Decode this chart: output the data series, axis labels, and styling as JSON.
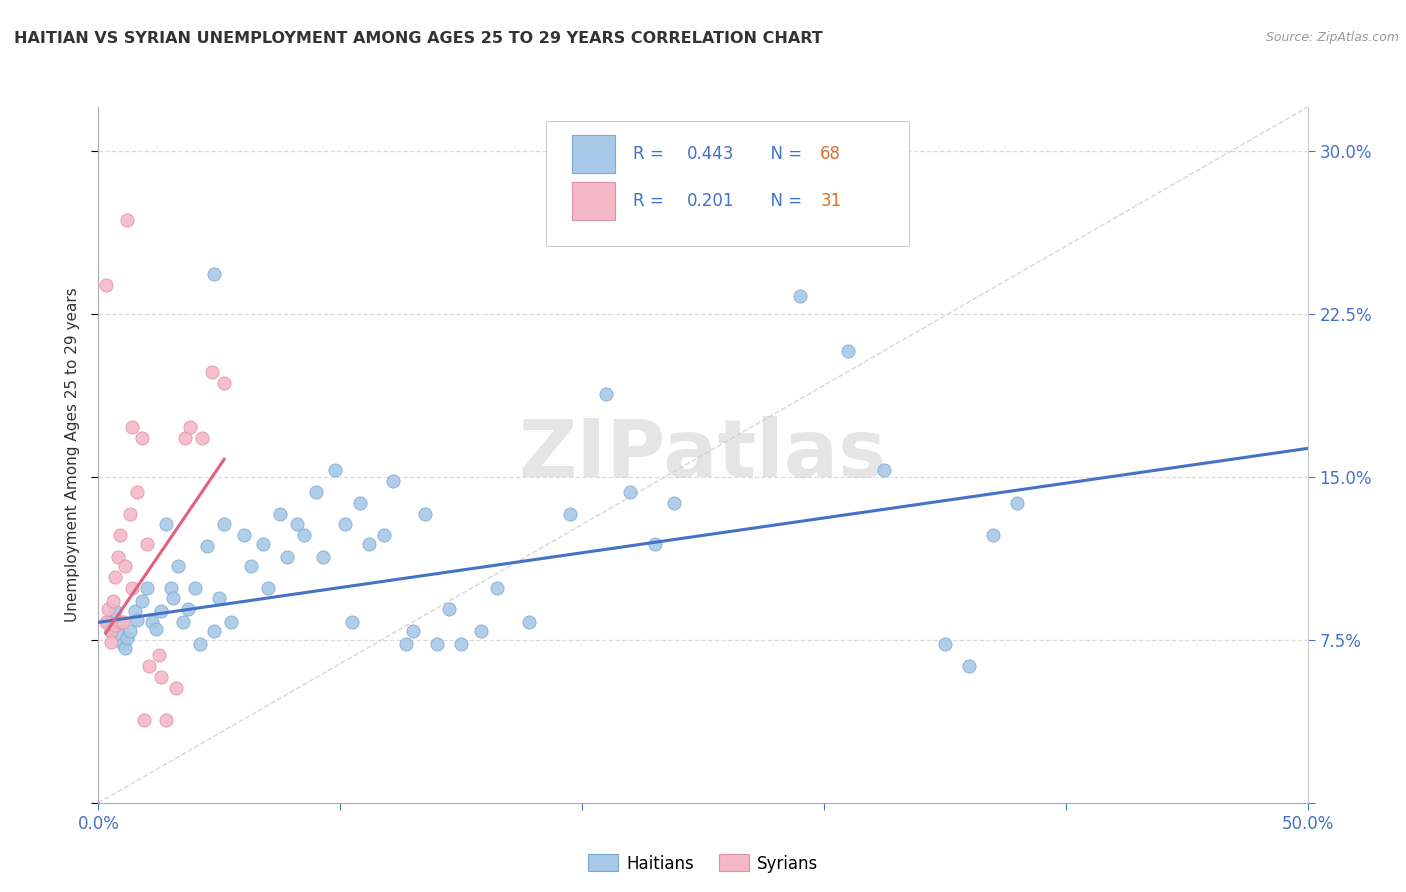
{
  "title": "HAITIAN VS SYRIAN UNEMPLOYMENT AMONG AGES 25 TO 29 YEARS CORRELATION CHART",
  "source": "Source: ZipAtlas.com",
  "ylabel": "Unemployment Among Ages 25 to 29 years",
  "xlim": [
    0.0,
    0.5
  ],
  "ylim": [
    0.0,
    0.32
  ],
  "yticks": [
    0.0,
    0.075,
    0.15,
    0.225,
    0.3
  ],
  "ytick_labels": [
    "",
    "7.5%",
    "15.0%",
    "22.5%",
    "30.0%"
  ],
  "xticks": [
    0.0,
    0.1,
    0.2,
    0.3,
    0.4,
    0.5
  ],
  "legend_haitian_R": "0.443",
  "legend_haitian_N": "68",
  "legend_syrian_R": "0.201",
  "legend_syrian_N": "31",
  "watermark": "ZIPatlas",
  "haitian_color": "#a8c8e8",
  "haitian_edge_color": "#7aaad0",
  "haitian_line_color": "#4472c4",
  "syrian_color": "#f4b8c8",
  "syrian_edge_color": "#e090a8",
  "syrian_line_color": "#e06080",
  "haitian_scatter": [
    [
      0.004,
      0.083
    ],
    [
      0.005,
      0.079
    ],
    [
      0.006,
      0.082
    ],
    [
      0.007,
      0.088
    ],
    [
      0.009,
      0.077
    ],
    [
      0.01,
      0.073
    ],
    [
      0.011,
      0.071
    ],
    [
      0.012,
      0.076
    ],
    [
      0.013,
      0.079
    ],
    [
      0.015,
      0.088
    ],
    [
      0.016,
      0.084
    ],
    [
      0.018,
      0.093
    ],
    [
      0.02,
      0.099
    ],
    [
      0.022,
      0.083
    ],
    [
      0.024,
      0.08
    ],
    [
      0.026,
      0.088
    ],
    [
      0.028,
      0.128
    ],
    [
      0.03,
      0.099
    ],
    [
      0.031,
      0.094
    ],
    [
      0.033,
      0.109
    ],
    [
      0.035,
      0.083
    ],
    [
      0.037,
      0.089
    ],
    [
      0.04,
      0.099
    ],
    [
      0.042,
      0.073
    ],
    [
      0.045,
      0.118
    ],
    [
      0.048,
      0.079
    ],
    [
      0.05,
      0.094
    ],
    [
      0.052,
      0.128
    ],
    [
      0.055,
      0.083
    ],
    [
      0.06,
      0.123
    ],
    [
      0.063,
      0.109
    ],
    [
      0.068,
      0.119
    ],
    [
      0.07,
      0.099
    ],
    [
      0.075,
      0.133
    ],
    [
      0.078,
      0.113
    ],
    [
      0.082,
      0.128
    ],
    [
      0.085,
      0.123
    ],
    [
      0.09,
      0.143
    ],
    [
      0.093,
      0.113
    ],
    [
      0.098,
      0.153
    ],
    [
      0.102,
      0.128
    ],
    [
      0.105,
      0.083
    ],
    [
      0.108,
      0.138
    ],
    [
      0.112,
      0.119
    ],
    [
      0.118,
      0.123
    ],
    [
      0.122,
      0.148
    ],
    [
      0.127,
      0.073
    ],
    [
      0.13,
      0.079
    ],
    [
      0.135,
      0.133
    ],
    [
      0.14,
      0.073
    ],
    [
      0.145,
      0.089
    ],
    [
      0.15,
      0.073
    ],
    [
      0.158,
      0.079
    ],
    [
      0.165,
      0.099
    ],
    [
      0.178,
      0.083
    ],
    [
      0.195,
      0.133
    ],
    [
      0.21,
      0.188
    ],
    [
      0.048,
      0.243
    ],
    [
      0.22,
      0.143
    ],
    [
      0.23,
      0.119
    ],
    [
      0.238,
      0.138
    ],
    [
      0.29,
      0.233
    ],
    [
      0.31,
      0.208
    ],
    [
      0.325,
      0.153
    ],
    [
      0.35,
      0.073
    ],
    [
      0.36,
      0.063
    ],
    [
      0.37,
      0.123
    ],
    [
      0.38,
      0.138
    ]
  ],
  "syrian_scatter": [
    [
      0.003,
      0.083
    ],
    [
      0.004,
      0.089
    ],
    [
      0.005,
      0.079
    ],
    [
      0.005,
      0.074
    ],
    [
      0.006,
      0.093
    ],
    [
      0.007,
      0.082
    ],
    [
      0.007,
      0.104
    ],
    [
      0.008,
      0.113
    ],
    [
      0.009,
      0.083
    ],
    [
      0.009,
      0.123
    ],
    [
      0.01,
      0.083
    ],
    [
      0.011,
      0.109
    ],
    [
      0.013,
      0.133
    ],
    [
      0.014,
      0.099
    ],
    [
      0.016,
      0.143
    ],
    [
      0.018,
      0.168
    ],
    [
      0.02,
      0.119
    ],
    [
      0.021,
      0.063
    ],
    [
      0.025,
      0.068
    ],
    [
      0.026,
      0.058
    ],
    [
      0.028,
      0.038
    ],
    [
      0.032,
      0.053
    ],
    [
      0.036,
      0.168
    ],
    [
      0.038,
      0.173
    ],
    [
      0.043,
      0.168
    ],
    [
      0.047,
      0.198
    ],
    [
      0.052,
      0.193
    ],
    [
      0.012,
      0.268
    ],
    [
      0.003,
      0.238
    ],
    [
      0.014,
      0.173
    ],
    [
      0.019,
      0.038
    ]
  ],
  "haitian_trend_x": [
    0.0,
    0.5
  ],
  "haitian_trend_y": [
    0.083,
    0.163
  ],
  "syrian_trend_x": [
    0.003,
    0.052
  ],
  "syrian_trend_y": [
    0.078,
    0.158
  ],
  "diag_line_x": [
    0.0,
    0.5
  ],
  "diag_line_y": [
    0.0,
    0.32
  ],
  "background_color": "#ffffff",
  "grid_color": "#dddddd",
  "text_color_blue": "#4472c4",
  "text_color_dark": "#333333",
  "text_color_source": "#999999"
}
